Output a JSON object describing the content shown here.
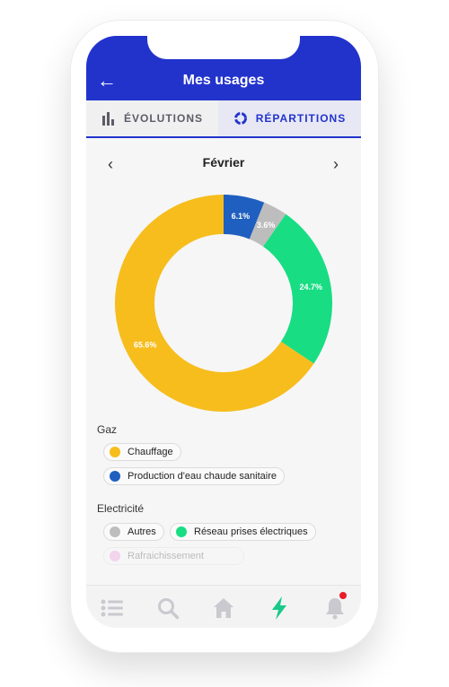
{
  "header": {
    "title": "Mes usages"
  },
  "tabs": [
    {
      "label": "ÉVOLUTIONS",
      "icon": "bar-chart-icon",
      "active": false
    },
    {
      "label": "RÉPARTITIONS",
      "icon": "donut-chart-icon",
      "active": true
    }
  ],
  "month": {
    "label": "Février"
  },
  "chart_data": {
    "type": "pie",
    "variant": "donut",
    "start_angle_deg": 0,
    "slices": [
      {
        "label": "Production d'eau chaude sanitaire",
        "value": 6.1,
        "display": "6.1%",
        "color": "#1f5fbf"
      },
      {
        "label": "Autres",
        "value": 3.6,
        "display": "3.6%",
        "color": "#bdbdbd"
      },
      {
        "label": "Réseau prises électriques",
        "value": 24.7,
        "display": "24.7%",
        "color": "#18dd83"
      },
      {
        "label": "Chauffage",
        "value": 65.6,
        "display": "65.6%",
        "color": "#f6bd1d"
      }
    ]
  },
  "legend": {
    "gaz": {
      "title": "Gaz",
      "items": [
        {
          "label": "Chauffage",
          "color": "#f6bd1d"
        },
        {
          "label": "Production d'eau chaude sanitaire",
          "color": "#1f5fbf"
        }
      ]
    },
    "electricite": {
      "title": "Electricité",
      "items": [
        {
          "label": "Autres",
          "color": "#bdbdbd"
        },
        {
          "label": "Réseau prises électriques",
          "color": "#18dd83"
        },
        {
          "label": "Rafraichissement",
          "color": "#f2d4ec",
          "disabled": true
        }
      ]
    }
  },
  "bottom_nav": [
    {
      "icon": "list-icon",
      "color": "#c9c9cf"
    },
    {
      "icon": "search-icon",
      "color": "#c9c9cf"
    },
    {
      "icon": "home-icon",
      "color": "#c9c9cf"
    },
    {
      "icon": "bolt-icon",
      "color": "#18c98a",
      "active": true
    },
    {
      "icon": "bell-icon",
      "color": "#c9c9cf",
      "badge": true
    }
  ]
}
